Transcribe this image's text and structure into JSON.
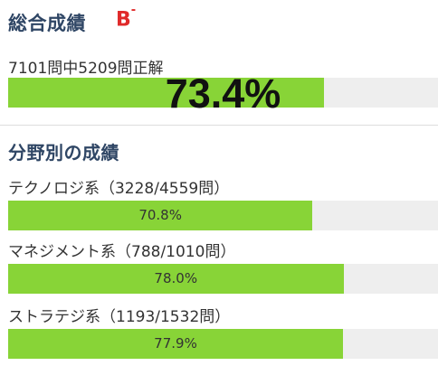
{
  "overall": {
    "title": "総合成績",
    "grade": "B",
    "grade_mark": "-",
    "summary": "7101問中5209問正解",
    "percent_label": "73.4%",
    "progress": 0.734
  },
  "categories_title": "分野別の成績",
  "categories": [
    {
      "label": "テクノロジ系（3228/4559問）",
      "percent_label": "70.8%",
      "progress": 0.708
    },
    {
      "label": "マネジメント系（788/1010問）",
      "percent_label": "78.0%",
      "progress": 0.78
    },
    {
      "label": "ストラテジ系（1193/1532問）",
      "percent_label": "77.9%",
      "progress": 0.779
    }
  ],
  "colors": {
    "heading": "#2f4665",
    "grade": "#e02a2a",
    "bar_fill": "#88d437",
    "bar_track": "#eeeeee"
  }
}
